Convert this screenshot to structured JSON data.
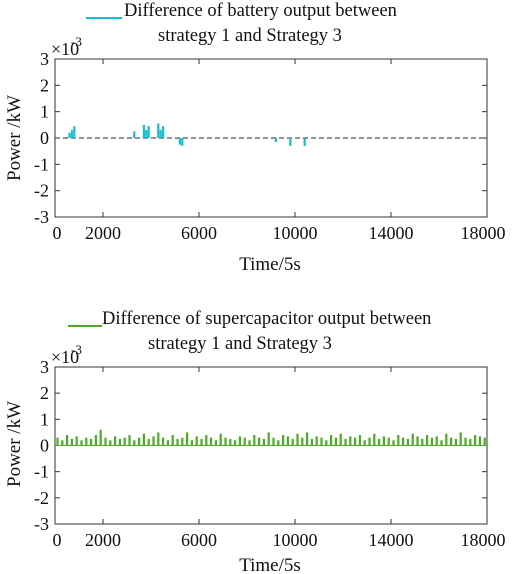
{
  "chart_data": [
    {
      "type": "bar",
      "legend": [
        "Difference of battery output between",
        "strategy 1 and Strategy 3"
      ],
      "legend_color": "#17becf",
      "xlabel": "Time/5s",
      "ylabel": "Power /kW",
      "exponent": "×10",
      "exponent_power": "-3",
      "xlim": [
        0,
        18000
      ],
      "ylim": [
        -3,
        3
      ],
      "xticks": [
        "0",
        "2000",
        "6000",
        "10000",
        "14000",
        "18000"
      ],
      "xtick_values": [
        0,
        2000,
        6000,
        10000,
        14000,
        18000
      ],
      "yticks": [
        "3",
        "2",
        "1",
        "0",
        "-1",
        "-2",
        "-3"
      ],
      "ytick_values": [
        3,
        2,
        1,
        0,
        -1,
        -2,
        -3
      ],
      "zero_line": "dashed",
      "grid": false,
      "series": [
        {
          "color": "#17becf",
          "x": [
            600,
            700,
            800,
            3300,
            3700,
            3800,
            3900,
            4300,
            4400,
            4500,
            5200,
            5300,
            9200,
            9800,
            10400
          ],
          "y": [
            0.2,
            0.3,
            0.45,
            0.25,
            0.5,
            0.3,
            0.45,
            0.55,
            0.3,
            0.45,
            -0.25,
            -0.3,
            -0.15,
            -0.3,
            -0.3
          ]
        }
      ]
    },
    {
      "type": "bar",
      "legend": [
        "Difference of supercapacitor output between",
        "strategy 1 and Strategy 3"
      ],
      "legend_color": "#4dac26",
      "xlabel": "Time/5s",
      "ylabel": "Power /kW",
      "exponent": "×10",
      "exponent_power": "-3",
      "xlim": [
        0,
        18000
      ],
      "ylim": [
        -3,
        3
      ],
      "xticks": [
        "0",
        "2000",
        "6000",
        "10000",
        "14000",
        "18000"
      ],
      "xtick_values": [
        0,
        2000,
        6000,
        10000,
        14000,
        18000
      ],
      "yticks": [
        "3",
        "2",
        "1",
        "0",
        "-1",
        "-2",
        "-3"
      ],
      "ytick_values": [
        3,
        2,
        1,
        0,
        -1,
        -2,
        -3
      ],
      "grid": false,
      "series": [
        {
          "color": "#4dac26",
          "x": [
            100,
            300,
            500,
            700,
            900,
            1100,
            1300,
            1500,
            1700,
            1900,
            2100,
            2300,
            2500,
            2700,
            2900,
            3100,
            3300,
            3500,
            3700,
            3900,
            4100,
            4300,
            4500,
            4700,
            4900,
            5100,
            5300,
            5500,
            5700,
            5900,
            6100,
            6300,
            6500,
            6700,
            6900,
            7100,
            7300,
            7500,
            7700,
            7900,
            8100,
            8300,
            8500,
            8700,
            8900,
            9100,
            9300,
            9500,
            9700,
            9900,
            10100,
            10300,
            10500,
            10700,
            10900,
            11100,
            11300,
            11500,
            11700,
            11900,
            12100,
            12300,
            12500,
            12700,
            12900,
            13100,
            13300,
            13500,
            13700,
            13900,
            14100,
            14300,
            14500,
            14700,
            14900,
            15100,
            15300,
            15500,
            15700,
            15900,
            16100,
            16300,
            16500,
            16700,
            16900,
            17100,
            17300,
            17500,
            17700,
            17900
          ],
          "y": [
            0.3,
            0.2,
            0.4,
            0.25,
            0.35,
            0.2,
            0.3,
            0.25,
            0.4,
            0.6,
            0.3,
            0.2,
            0.35,
            0.25,
            0.3,
            0.4,
            0.2,
            0.3,
            0.45,
            0.25,
            0.35,
            0.5,
            0.3,
            0.2,
            0.4,
            0.25,
            0.3,
            0.5,
            0.2,
            0.35,
            0.25,
            0.4,
            0.3,
            0.2,
            0.45,
            0.3,
            0.25,
            0.2,
            0.35,
            0.3,
            0.2,
            0.4,
            0.3,
            0.25,
            0.5,
            0.3,
            0.2,
            0.4,
            0.35,
            0.25,
            0.45,
            0.3,
            0.5,
            0.25,
            0.35,
            0.3,
            0.2,
            0.4,
            0.3,
            0.45,
            0.25,
            0.35,
            0.3,
            0.4,
            0.2,
            0.3,
            0.45,
            0.25,
            0.35,
            0.3,
            0.2,
            0.4,
            0.3,
            0.25,
            0.45,
            0.35,
            0.25,
            0.4,
            0.3,
            0.35,
            0.2,
            0.45,
            0.3,
            0.25,
            0.5,
            0.3,
            0.25,
            0.4,
            0.35,
            0.3
          ]
        }
      ]
    }
  ]
}
